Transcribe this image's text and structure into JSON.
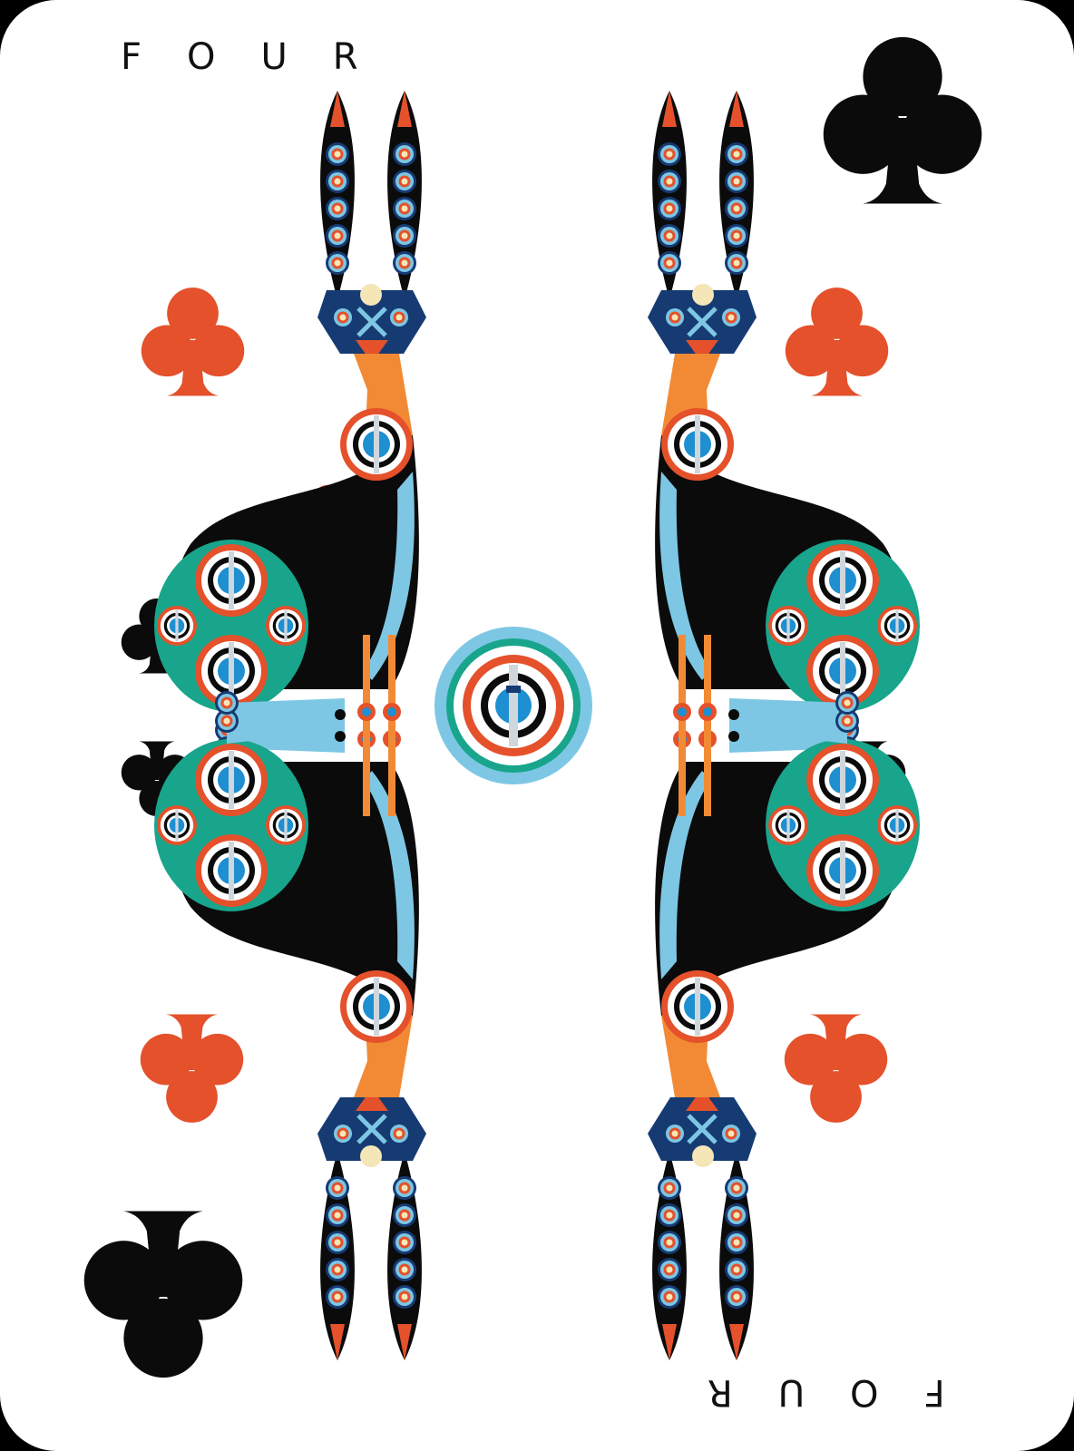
{
  "card": {
    "rank_label": "FOUR",
    "rank_label_inverted": "FOUR",
    "suit": "clubs",
    "suit_icon": "club-icon",
    "figure_icon": "hare-icon",
    "center_emblem_icon": "concentric-medallion-icon"
  },
  "colors": {
    "background": "#ffffff",
    "outer": "#000000",
    "black_suit": "#0b0b0b",
    "orange_red": "#e4512b",
    "orange": "#f28a35",
    "light_blue": "#7dc7e4",
    "blue": "#1e8fd0",
    "navy": "#163b73",
    "teal": "#18a58c",
    "cream": "#f5e6b8"
  }
}
